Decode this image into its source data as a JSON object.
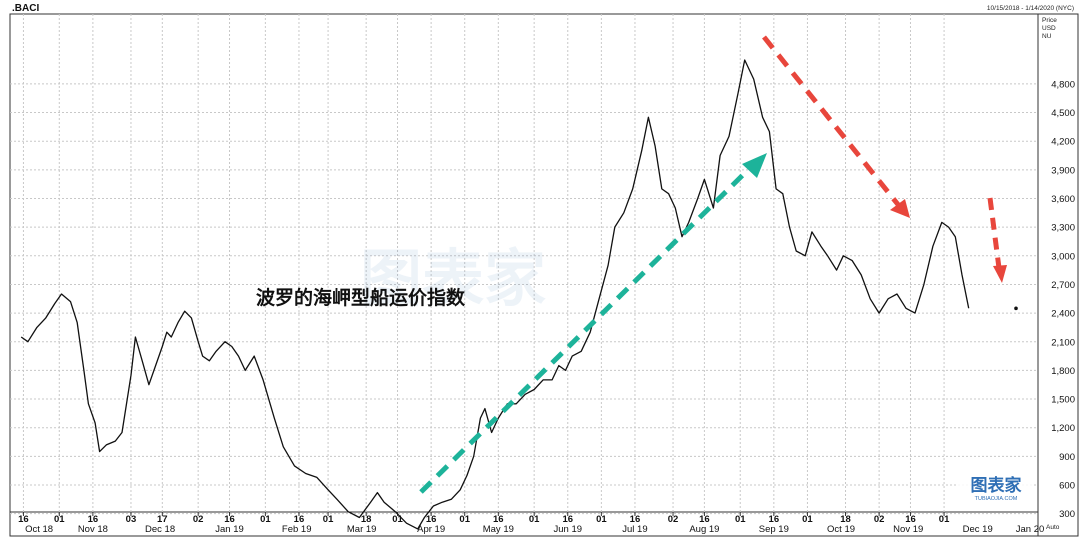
{
  "header": {
    "symbol": ".BACI",
    "date_range": "10/15/2018 - 1/14/2020 (NYC)",
    "unit_lines": [
      "Price",
      "USD",
      "NU"
    ]
  },
  "annotation": "波罗的海岬型船运价指数",
  "watermark": "图表家",
  "logo": {
    "text": "图表家",
    "sub": "TUBIAOJIA.COM"
  },
  "auto_label": "Auto",
  "colors": {
    "line": "#111111",
    "up_arrow": "#1db39a",
    "down_arrow": "#e8463c",
    "logo": "#2f6fb5"
  },
  "chart_data": {
    "type": "line",
    "title": "",
    "xlabel": "",
    "ylabel": "",
    "ylim": [
      100,
      5100
    ],
    "yticks": [
      300,
      600,
      900,
      1200,
      1500,
      1800,
      2100,
      2400,
      2700,
      3000,
      3300,
      3600,
      3900,
      4200,
      4500,
      4800
    ],
    "ytick_labels": [
      "300",
      "600",
      "900",
      "1,200",
      "1,500",
      "1,800",
      "2,100",
      "2,400",
      "2,700",
      "3,000",
      "3,300",
      "3,600",
      "3,900",
      "4,200",
      "4,500",
      "4,800"
    ],
    "x_day_labels": [
      "16",
      "01",
      "16",
      "03",
      "17",
      "02",
      "16",
      "01",
      "16",
      "01",
      "18",
      "01",
      "16",
      "01",
      "16",
      "01",
      "16",
      "01",
      "16",
      "02",
      "16",
      "01",
      "16",
      "01",
      "18",
      "02",
      "16",
      "01"
    ],
    "x_month_labels": [
      "Oct 18",
      "Nov 18",
      "Dec 18",
      "Jan 19",
      "Feb 19",
      "Mar 19",
      "Apr 19",
      "May 19",
      "Jun 19",
      "Jul 19",
      "Aug 19",
      "Sep 19",
      "Oct 19",
      "Nov 19",
      "Dec 19",
      "Jan 20"
    ],
    "last_value": 2450,
    "series": [
      {
        "values": [
          [
            "2018-10-15",
            2150
          ],
          [
            "2018-10-18",
            2100
          ],
          [
            "2018-10-22",
            2250
          ],
          [
            "2018-10-26",
            2350
          ],
          [
            "2018-10-30",
            2500
          ],
          [
            "2018-11-02",
            2600
          ],
          [
            "2018-11-06",
            2520
          ],
          [
            "2018-11-09",
            2300
          ],
          [
            "2018-11-12",
            1800
          ],
          [
            "2018-11-14",
            1450
          ],
          [
            "2018-11-17",
            1250
          ],
          [
            "2018-11-19",
            950
          ],
          [
            "2018-11-22",
            1020
          ],
          [
            "2018-11-26",
            1060
          ],
          [
            "2018-11-29",
            1150
          ],
          [
            "2018-12-03",
            1750
          ],
          [
            "2018-12-05",
            2150
          ],
          [
            "2018-12-08",
            1900
          ],
          [
            "2018-12-11",
            1650
          ],
          [
            "2018-12-14",
            1850
          ],
          [
            "2018-12-17",
            2050
          ],
          [
            "2018-12-19",
            2200
          ],
          [
            "2018-12-21",
            2150
          ],
          [
            "2018-12-24",
            2300
          ],
          [
            "2018-12-27",
            2420
          ],
          [
            "2018-12-30",
            2350
          ],
          [
            "2019-01-02",
            2100
          ],
          [
            "2019-01-04",
            1950
          ],
          [
            "2019-01-07",
            1900
          ],
          [
            "2019-01-10",
            2000
          ],
          [
            "2019-01-14",
            2100
          ],
          [
            "2019-01-17",
            2050
          ],
          [
            "2019-01-20",
            1950
          ],
          [
            "2019-01-23",
            1800
          ],
          [
            "2019-01-27",
            1950
          ],
          [
            "2019-01-31",
            1700
          ],
          [
            "2019-02-05",
            1300
          ],
          [
            "2019-02-09",
            1000
          ],
          [
            "2019-02-14",
            800
          ],
          [
            "2019-02-19",
            720
          ],
          [
            "2019-02-24",
            680
          ],
          [
            "2019-03-01",
            550
          ],
          [
            "2019-03-05",
            450
          ],
          [
            "2019-03-10",
            320
          ],
          [
            "2019-03-15",
            260
          ],
          [
            "2019-03-20",
            420
          ],
          [
            "2019-03-23",
            520
          ],
          [
            "2019-03-26",
            420
          ],
          [
            "2019-03-31",
            320
          ],
          [
            "2019-04-05",
            200
          ],
          [
            "2019-04-10",
            140
          ],
          [
            "2019-04-13",
            260
          ],
          [
            "2019-04-17",
            380
          ],
          [
            "2019-04-21",
            420
          ],
          [
            "2019-04-25",
            450
          ],
          [
            "2019-04-29",
            550
          ],
          [
            "2019-05-02",
            700
          ],
          [
            "2019-05-05",
            900
          ],
          [
            "2019-05-08",
            1300
          ],
          [
            "2019-05-10",
            1400
          ],
          [
            "2019-05-13",
            1150
          ],
          [
            "2019-05-16",
            1300
          ],
          [
            "2019-05-20",
            1450
          ],
          [
            "2019-05-24",
            1450
          ],
          [
            "2019-05-28",
            1550
          ],
          [
            "2019-06-01",
            1600
          ],
          [
            "2019-06-05",
            1700
          ],
          [
            "2019-06-09",
            1700
          ],
          [
            "2019-06-12",
            1850
          ],
          [
            "2019-06-15",
            1800
          ],
          [
            "2019-06-18",
            1950
          ],
          [
            "2019-06-22",
            2000
          ],
          [
            "2019-06-26",
            2200
          ],
          [
            "2019-06-30",
            2550
          ],
          [
            "2019-07-04",
            2900
          ],
          [
            "2019-07-07",
            3300
          ],
          [
            "2019-07-11",
            3450
          ],
          [
            "2019-07-15",
            3700
          ],
          [
            "2019-07-19",
            4100
          ],
          [
            "2019-07-22",
            4450
          ],
          [
            "2019-07-25",
            4150
          ],
          [
            "2019-07-28",
            3700
          ],
          [
            "2019-07-31",
            3650
          ],
          [
            "2019-08-03",
            3500
          ],
          [
            "2019-08-06",
            3200
          ],
          [
            "2019-08-09",
            3350
          ],
          [
            "2019-08-13",
            3600
          ],
          [
            "2019-08-16",
            3800
          ],
          [
            "2019-08-20",
            3500
          ],
          [
            "2019-08-23",
            4050
          ],
          [
            "2019-08-27",
            4250
          ],
          [
            "2019-08-31",
            4700
          ],
          [
            "2019-09-03",
            5050
          ],
          [
            "2019-09-07",
            4850
          ],
          [
            "2019-09-11",
            4450
          ],
          [
            "2019-09-14",
            4300
          ],
          [
            "2019-09-17",
            3700
          ],
          [
            "2019-09-20",
            3650
          ],
          [
            "2019-09-23",
            3300
          ],
          [
            "2019-09-26",
            3050
          ],
          [
            "2019-09-30",
            3000
          ],
          [
            "2019-10-03",
            3250
          ],
          [
            "2019-10-07",
            3100
          ],
          [
            "2019-10-10",
            3000
          ],
          [
            "2019-10-14",
            2850
          ],
          [
            "2019-10-17",
            3000
          ],
          [
            "2019-10-21",
            2950
          ],
          [
            "2019-10-25",
            2800
          ],
          [
            "2019-10-29",
            2550
          ],
          [
            "2019-11-02",
            2400
          ],
          [
            "2019-11-06",
            2550
          ],
          [
            "2019-11-10",
            2600
          ],
          [
            "2019-11-14",
            2450
          ],
          [
            "2019-11-18",
            2400
          ],
          [
            "2019-11-22",
            2700
          ],
          [
            "2019-11-26",
            3100
          ],
          [
            "2019-11-30",
            3350
          ],
          [
            "2019-12-03",
            3300
          ],
          [
            "2019-12-06",
            3200
          ],
          [
            "2019-12-09",
            2800
          ],
          [
            "2019-12-12",
            2450
          ]
        ]
      }
    ]
  }
}
